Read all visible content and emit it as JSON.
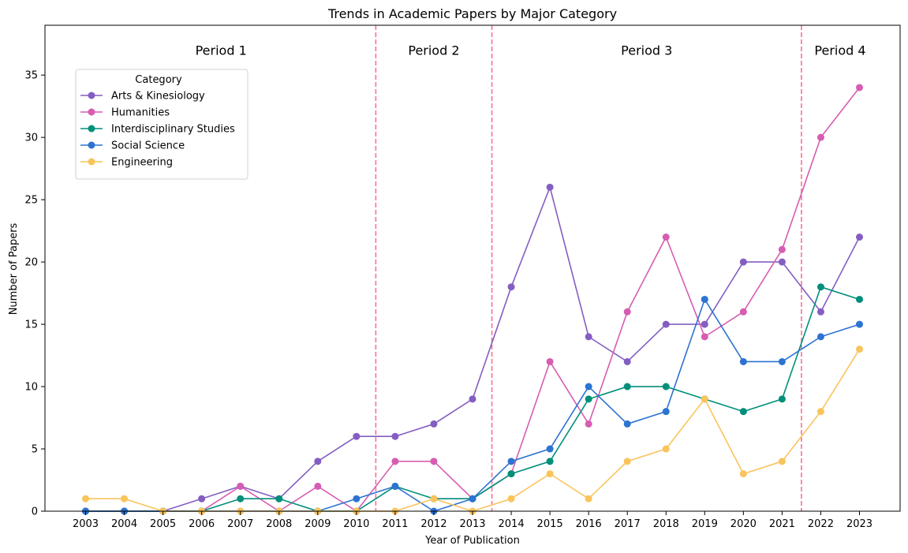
{
  "chart_data": {
    "type": "line",
    "title": "Trends in Academic Papers by Major Category",
    "xlabel": "Year of Publication",
    "ylabel": "Number of Papers",
    "x": [
      2003,
      2004,
      2005,
      2006,
      2007,
      2008,
      2009,
      2010,
      2011,
      2012,
      2013,
      2014,
      2015,
      2016,
      2017,
      2018,
      2019,
      2020,
      2021,
      2022,
      2023
    ],
    "xlim": [
      2001.95,
      2024.05
    ],
    "ylim": [
      0,
      39
    ],
    "yticks": [
      0,
      5,
      10,
      15,
      20,
      25,
      30,
      35
    ],
    "grid": false,
    "legend": {
      "title": "Category",
      "position": "upper-left"
    },
    "series": [
      {
        "name": "Arts & Kinesiology",
        "color": "#845ec2",
        "values": [
          0,
          0,
          0,
          1,
          2,
          1,
          4,
          6,
          6,
          7,
          9,
          18,
          26,
          14,
          12,
          15,
          15,
          20,
          20,
          16,
          22
        ]
      },
      {
        "name": "Humanities",
        "color": "#d65db1",
        "values": [
          0,
          0,
          0,
          0,
          2,
          0,
          2,
          0,
          4,
          4,
          1,
          3,
          12,
          7,
          16,
          22,
          14,
          16,
          21,
          30,
          34
        ]
      },
      {
        "name": "Interdisciplinary Studies",
        "color": "#008f7a",
        "values": [
          0,
          0,
          0,
          0,
          1,
          1,
          0,
          0,
          2,
          1,
          1,
          3,
          4,
          9,
          10,
          10,
          9,
          8,
          9,
          18,
          17
        ]
      },
      {
        "name": "Social Science",
        "color": "#2c73d2",
        "values": [
          0,
          0,
          0,
          0,
          0,
          0,
          0,
          1,
          2,
          0,
          1,
          4,
          5,
          10,
          7,
          8,
          17,
          12,
          12,
          14,
          15
        ]
      },
      {
        "name": "Engineering",
        "color": "#f9c45c",
        "values": [
          1,
          1,
          0,
          0,
          0,
          0,
          0,
          0,
          0,
          1,
          0,
          1,
          3,
          1,
          4,
          5,
          9,
          3,
          4,
          8,
          13
        ]
      }
    ],
    "period_dividers": {
      "color": "#ff6f91",
      "x": [
        2010.5,
        2013.5,
        2021.5
      ]
    },
    "periods": [
      {
        "label": "Period 1",
        "x": 2006.5,
        "y": 37
      },
      {
        "label": "Period 2",
        "x": 2012,
        "y": 37
      },
      {
        "label": "Period 3",
        "x": 2017.5,
        "y": 37
      },
      {
        "label": "Period 4",
        "x": 2022.5,
        "y": 37
      }
    ]
  }
}
